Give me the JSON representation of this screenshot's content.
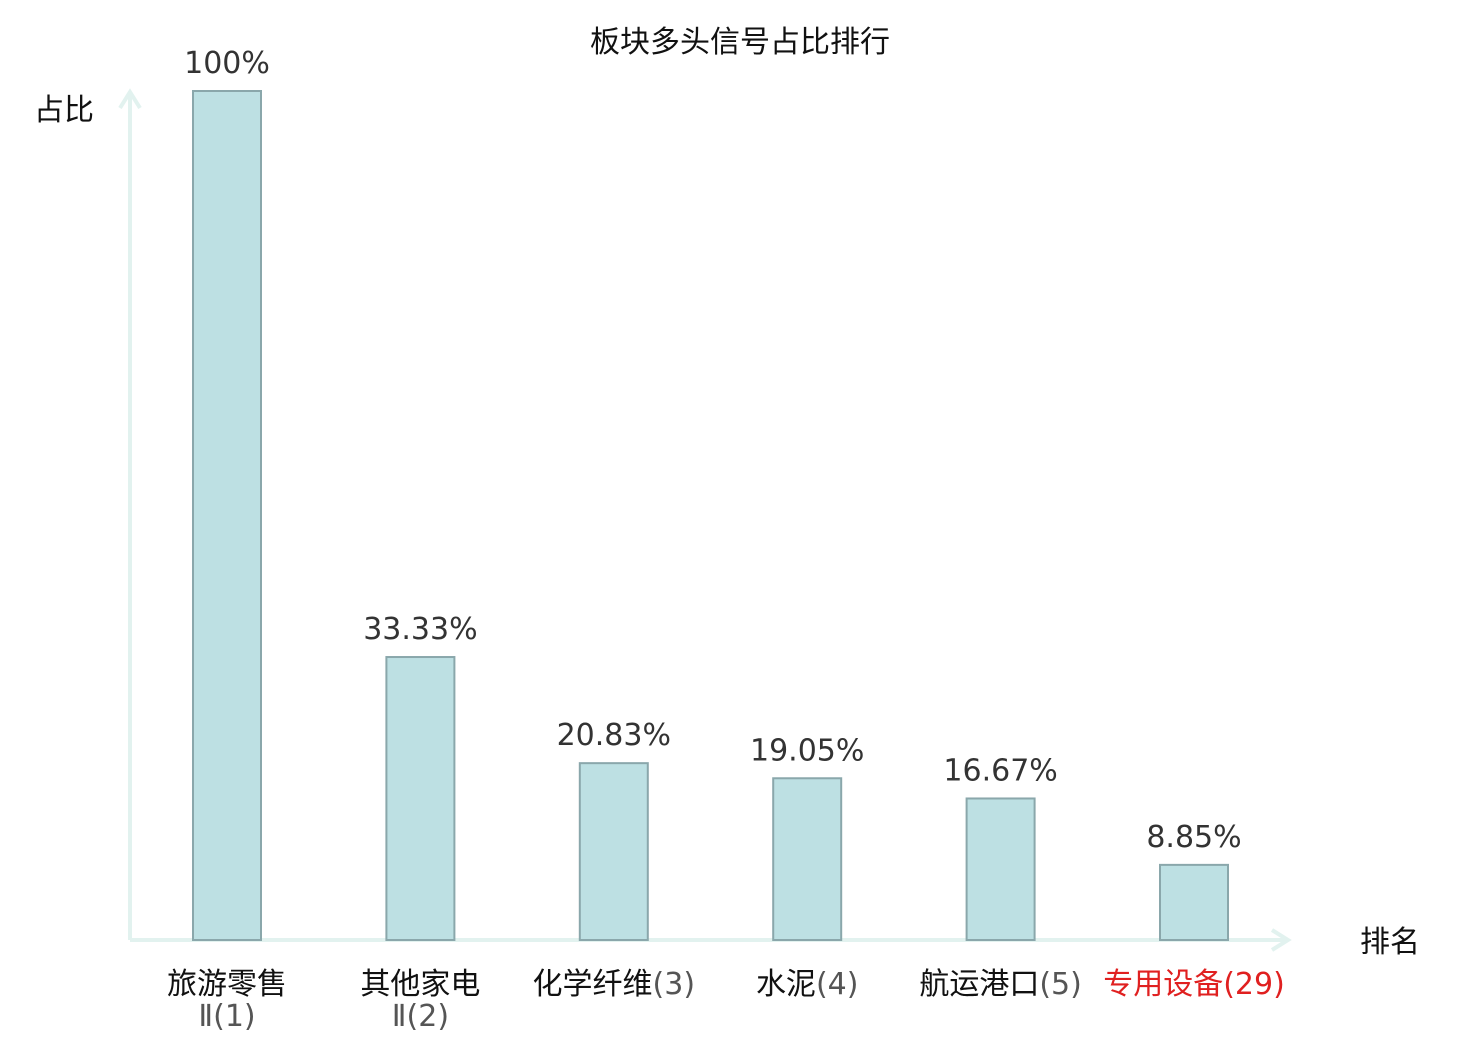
{
  "chart_data": {
    "type": "bar",
    "title": "板块多头信号占比排行",
    "ylabel": "占比",
    "xlabel": "排名",
    "ylim": [
      0,
      100
    ],
    "grid": false,
    "categories": [
      {
        "name": "旅游零售",
        "rank": "Ⅱ(1)",
        "value": 100,
        "label": "100%",
        "highlight": false
      },
      {
        "name": "其他家电",
        "rank": "Ⅱ(2)",
        "value": 33.33,
        "label": "33.33%",
        "highlight": false
      },
      {
        "name": "化学纤维",
        "rank": "(3)",
        "value": 20.83,
        "label": "20.83%",
        "highlight": false
      },
      {
        "name": "水泥",
        "rank": "(4)",
        "value": 19.05,
        "label": "19.05%",
        "highlight": false
      },
      {
        "name": "航运港口",
        "rank": "(5)",
        "value": 16.67,
        "label": "16.67%",
        "highlight": false
      },
      {
        "name": "专用设备",
        "rank": "(29)",
        "value": 8.85,
        "label": "8.85%",
        "highlight": true
      }
    ],
    "colors": {
      "bar_fill": "#bde0e3",
      "bar_stroke": "#8aa7ab",
      "axis": "#e2f2ef",
      "highlight": "#e02020"
    }
  }
}
